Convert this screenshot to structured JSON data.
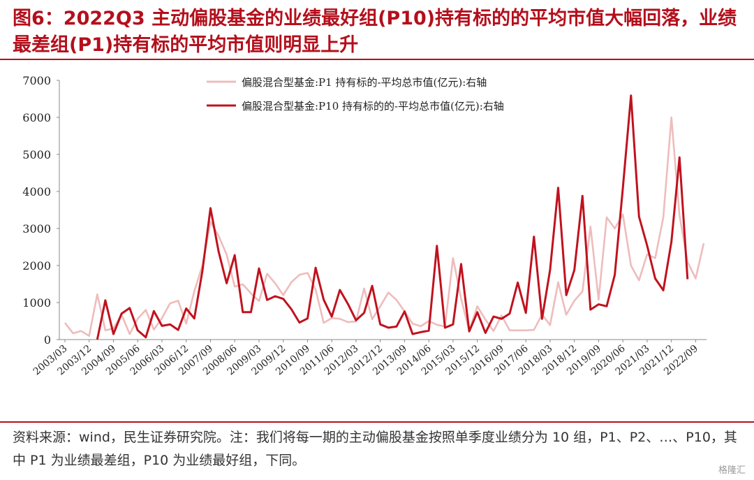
{
  "title": "图6：2022Q3 主动偏股基金的业绩最好组(P10)持有标的的平均市值大幅回落，业绩最差组(P1)持有标的平均市值则明显上升",
  "note": "资料来源：wind，民生证券研究院。注：我们将每一期的主动偏股基金按照单季度业绩分为 10 组，P1、P2、…、P10，其中 P1 为业绩最差组，P10 为业绩最好组，下同。",
  "watermark": "格隆汇",
  "colors": {
    "accent": "#b40f1c",
    "p1": "#eebcbc",
    "p10": "#c0121e"
  },
  "chart_data": {
    "type": "line",
    "ylim": [
      0,
      7000
    ],
    "yticks": [
      0,
      1000,
      2000,
      3000,
      4000,
      5000,
      6000,
      7000
    ],
    "xtick_labels": [
      "2003/03",
      "2003/12",
      "2004/09",
      "2005/06",
      "2006/03",
      "2006/12",
      "2007/09",
      "2008/06",
      "2009/03",
      "2009/12",
      "2010/09",
      "2011/06",
      "2012/03",
      "2012/12",
      "2013/09",
      "2014/06",
      "2015/03",
      "2015/12",
      "2016/09",
      "2017/06",
      "2018/03",
      "2018/12",
      "2019/09",
      "2020/06",
      "2021/03",
      "2021/12",
      "2022/09"
    ],
    "legend_position": "top",
    "series": [
      {
        "name": "偏股混合型基金:P1 持有标的-平均总市值(亿元):右轴",
        "values": [
          450,
          170,
          230,
          100,
          1220,
          250,
          300,
          680,
          150,
          560,
          800,
          270,
          580,
          980,
          1050,
          430,
          1300,
          2000,
          3180,
          2800,
          2300,
          1430,
          1490,
          1250,
          1040,
          1780,
          1520,
          1200,
          1550,
          1750,
          1800,
          1350,
          450,
          580,
          560,
          470,
          490,
          1380,
          550,
          900,
          1270,
          1070,
          760,
          430,
          360,
          500,
          400,
          350,
          2200,
          1100,
          240,
          900,
          540,
          230,
          650,
          250,
          250,
          250,
          260,
          680,
          390,
          1550,
          670,
          1050,
          1300,
          3050,
          1080,
          3300,
          3000,
          3380,
          2000,
          1600,
          2300,
          2200,
          3300,
          6000,
          3350,
          2100,
          1650,
          2600
        ]
      },
      {
        "name": "偏股混合型基金:P10 持有标的的-平均总市值(亿元):右轴",
        "values": [
          null,
          null,
          null,
          null,
          0,
          1060,
          150,
          700,
          850,
          250,
          60,
          770,
          370,
          410,
          260,
          840,
          570,
          1850,
          3550,
          2380,
          1520,
          2280,
          740,
          740,
          1920,
          1070,
          1170,
          1100,
          820,
          460,
          570,
          1940,
          1080,
          620,
          1340,
          960,
          520,
          720,
          1450,
          410,
          320,
          350,
          760,
          150,
          200,
          240,
          2530,
          320,
          410,
          2040,
          220,
          740,
          180,
          620,
          560,
          700,
          1540,
          720,
          2780,
          560,
          1880,
          4100,
          1200,
          1880,
          3880,
          810,
          950,
          900,
          1750,
          4100,
          6590,
          3320,
          2540,
          1650,
          1330,
          2640,
          4920,
          1630
        ]
      }
    ]
  }
}
